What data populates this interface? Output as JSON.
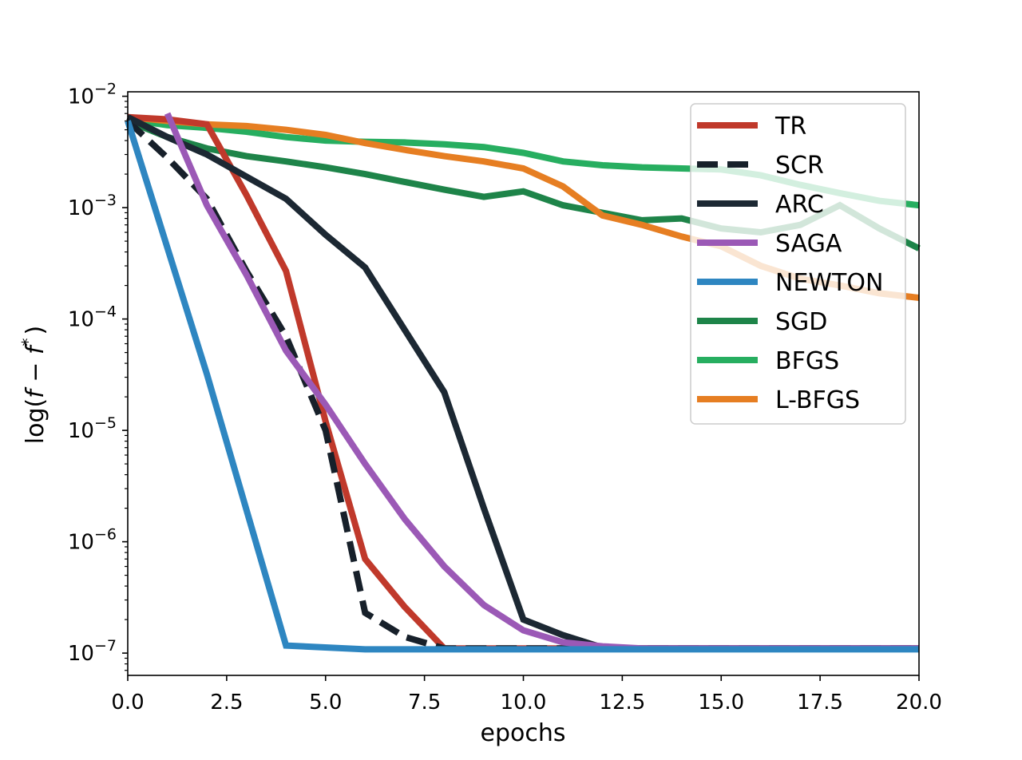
{
  "chart_data": {
    "type": "line",
    "xlabel": "epochs",
    "ylabel": "log(f − f*)",
    "ylabel_parts": {
      "prefix": "log(",
      "f1": "f",
      "minus": " − ",
      "f2": "f",
      "star": "*",
      "suffix": ")"
    },
    "xlim": [
      0,
      20
    ],
    "ylim_log10": [
      -7.2,
      -1.96
    ],
    "yscale": "log",
    "grid": false,
    "legend_placement": "top-right",
    "x_ticks": [
      {
        "value": 0.0,
        "label": "0.0"
      },
      {
        "value": 2.5,
        "label": "2.5"
      },
      {
        "value": 5.0,
        "label": "5.0"
      },
      {
        "value": 7.5,
        "label": "7.5"
      },
      {
        "value": 10.0,
        "label": "10.0"
      },
      {
        "value": 12.5,
        "label": "12.5"
      },
      {
        "value": 15.0,
        "label": "15.0"
      },
      {
        "value": 17.5,
        "label": "17.5"
      },
      {
        "value": 20.0,
        "label": "20.0"
      }
    ],
    "y_ticks": [
      {
        "exp": -2,
        "base": "10",
        "sup": "−2"
      },
      {
        "exp": -3,
        "base": "10",
        "sup": "−3"
      },
      {
        "exp": -4,
        "base": "10",
        "sup": "−4"
      },
      {
        "exp": -5,
        "base": "10",
        "sup": "−5"
      },
      {
        "exp": -6,
        "base": "10",
        "sup": "−6"
      },
      {
        "exp": -7,
        "base": "10",
        "sup": "−7"
      }
    ],
    "series": [
      {
        "name": "SGD",
        "color": "#1e8449",
        "dashed": false,
        "x": [
          0,
          1,
          2,
          3,
          4,
          5,
          6,
          7,
          8,
          9,
          10,
          11,
          12,
          13,
          14,
          15,
          16,
          17,
          18,
          19,
          20
        ],
        "y": [
          0.006,
          0.0043,
          0.0034,
          0.0029,
          0.0026,
          0.0023,
          0.002,
          0.0017,
          0.00145,
          0.00125,
          0.0014,
          0.00105,
          0.0009,
          0.00077,
          0.0008,
          0.00065,
          0.0006,
          0.0007,
          0.00105,
          0.00065,
          0.00043
        ]
      },
      {
        "name": "BFGS",
        "color": "#27ae60",
        "dashed": false,
        "x": [
          0,
          1,
          2,
          3,
          4,
          5,
          6,
          7,
          8,
          9,
          10,
          11,
          12,
          13,
          14,
          15,
          16,
          17,
          18,
          19,
          20
        ],
        "y": [
          0.0062,
          0.0055,
          0.0052,
          0.0048,
          0.0043,
          0.004,
          0.0039,
          0.00385,
          0.0037,
          0.0035,
          0.0031,
          0.0026,
          0.0024,
          0.0023,
          0.00225,
          0.0022,
          0.00195,
          0.0016,
          0.00135,
          0.00115,
          0.00105
        ]
      },
      {
        "name": "L-BFGS",
        "color": "#e67e22",
        "dashed": false,
        "x": [
          0,
          1,
          2,
          3,
          4,
          5,
          6,
          7,
          8,
          9,
          10,
          11,
          12,
          13,
          14,
          15,
          16,
          17,
          18,
          19,
          20
        ],
        "y": [
          0.0065,
          0.006,
          0.0056,
          0.0054,
          0.005,
          0.0045,
          0.0038,
          0.0033,
          0.0029,
          0.0026,
          0.00225,
          0.00155,
          0.00085,
          0.0007,
          0.00055,
          0.00045,
          0.0003,
          0.00023,
          0.0002,
          0.00017,
          0.000155
        ]
      },
      {
        "name": "TR",
        "color": "#c0392b",
        "dashed": false,
        "x": [
          0,
          1,
          2,
          3,
          4,
          5,
          6,
          7,
          8,
          9,
          10,
          11,
          12,
          13,
          14,
          15,
          16,
          17,
          18,
          19,
          20
        ],
        "y": [
          0.0065,
          0.0062,
          0.0056,
          0.0013,
          0.00027,
          1.2e-05,
          7e-07,
          2.6e-07,
          1.1e-07,
          1.1e-07,
          1.1e-07,
          1.1e-07,
          1.1e-07,
          1.1e-07,
          1.1e-07,
          1.1e-07,
          1.1e-07,
          1.1e-07,
          1.1e-07,
          1.1e-07,
          1.1e-07
        ]
      },
      {
        "name": "SCR",
        "color": "#17202a",
        "dashed": true,
        "x": [
          0,
          1,
          2,
          3,
          4,
          5,
          6,
          7,
          8,
          9,
          10,
          11,
          12,
          13,
          14,
          15,
          16,
          17,
          18,
          19,
          20
        ],
        "y": [
          0.006,
          0.0028,
          0.0012,
          0.00027,
          7e-05,
          1e-05,
          2.3e-07,
          1.4e-07,
          1.1e-07,
          1.1e-07,
          1.1e-07,
          1.1e-07,
          1.1e-07,
          1.1e-07,
          1.1e-07,
          1.1e-07,
          1.1e-07,
          1.1e-07,
          1.1e-07,
          1.1e-07,
          1.1e-07
        ]
      },
      {
        "name": "ARC",
        "color": "#1c2833",
        "dashed": false,
        "x": [
          0,
          1,
          2,
          3,
          4,
          5,
          6,
          7,
          8,
          9,
          10,
          11,
          12,
          13,
          14,
          15,
          16,
          17,
          18,
          19,
          20
        ],
        "y": [
          0.0065,
          0.0043,
          0.003,
          0.0019,
          0.0012,
          0.00057,
          0.00029,
          8e-05,
          2.2e-05,
          2e-06,
          2e-07,
          1.45e-07,
          1.12e-07,
          1.1e-07,
          1.1e-07,
          1.1e-07,
          1.1e-07,
          1.1e-07,
          1.1e-07,
          1.1e-07,
          1.1e-07
        ]
      },
      {
        "name": "SAGA",
        "color": "#9b59b6",
        "dashed": false,
        "x": [
          1,
          2,
          3,
          4,
          5,
          6,
          7,
          8,
          9,
          10,
          11,
          12,
          13,
          14,
          15,
          16,
          17,
          18,
          19,
          20
        ],
        "y": [
          0.007,
          0.00105,
          0.00025,
          5.2e-05,
          1.7e-05,
          5e-06,
          1.6e-06,
          6e-07,
          2.7e-07,
          1.6e-07,
          1.25e-07,
          1.15e-07,
          1.1e-07,
          1.1e-07,
          1.1e-07,
          1.1e-07,
          1.1e-07,
          1.1e-07,
          1.1e-07,
          1.1e-07
        ]
      },
      {
        "name": "NEWTON",
        "color": "#2e86c1",
        "dashed": false,
        "x": [
          0,
          2,
          4,
          6,
          8,
          10,
          12,
          14,
          16,
          18,
          20
        ],
        "y": [
          0.006,
          3.2e-05,
          1.17e-07,
          1.08e-07,
          1.08e-07,
          1.08e-07,
          1.08e-07,
          1.08e-07,
          1.08e-07,
          1.08e-07,
          1.08e-07
        ]
      }
    ],
    "legend": [
      {
        "label": "TR",
        "color": "#c0392b",
        "dashed": false
      },
      {
        "label": "SCR",
        "color": "#17202a",
        "dashed": true
      },
      {
        "label": "ARC",
        "color": "#1c2833",
        "dashed": false
      },
      {
        "label": "SAGA",
        "color": "#9b59b6",
        "dashed": false
      },
      {
        "label": "NEWTON",
        "color": "#2e86c1",
        "dashed": false
      },
      {
        "label": "SGD",
        "color": "#1e8449",
        "dashed": false
      },
      {
        "label": "BFGS",
        "color": "#27ae60",
        "dashed": false
      },
      {
        "label": "L-BFGS",
        "color": "#e67e22",
        "dashed": false
      }
    ]
  }
}
